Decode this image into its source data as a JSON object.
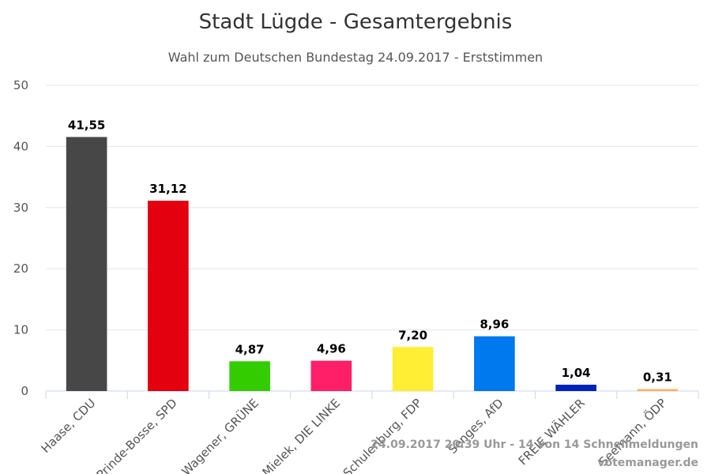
{
  "chart_data": {
    "type": "bar",
    "title": "Stadt Lügde - Gesamtergebnis",
    "subtitle": "Wahl zum Deutschen Bundestag 24.09.2017 - Erststimmen",
    "xlabel": "",
    "ylabel": "",
    "ylim": [
      0,
      50
    ],
    "yticks": [
      "0",
      "10",
      "20",
      "30",
      "40",
      "50"
    ],
    "grid": true,
    "categories": [
      "Haase, CDU",
      "Prinde-Bosse, SPD",
      "Wagener, GRÜNE",
      "Mielek, DIE LINKE",
      "Schulenburg, FDP",
      "Senges, AfD",
      "FREIE WÄHLER",
      "Seemann, ÖDP"
    ],
    "values": [
      41.55,
      31.12,
      4.87,
      4.96,
      7.2,
      8.96,
      1.04,
      0.31
    ],
    "value_labels": [
      "41,55",
      "31,12",
      "4,87",
      "4,96",
      "7,20",
      "8,96",
      "1,04",
      "0,31"
    ],
    "colors": [
      "#474747",
      "#e3000f",
      "#33cc00",
      "#ff1f68",
      "#ffee33",
      "#0078ee",
      "#0022bb",
      "#ffb055"
    ]
  },
  "credits": {
    "status": "24.09.2017 20:39 Uhr - 14 von 14 Schnellmeldungen",
    "source": "votemanager.de"
  }
}
